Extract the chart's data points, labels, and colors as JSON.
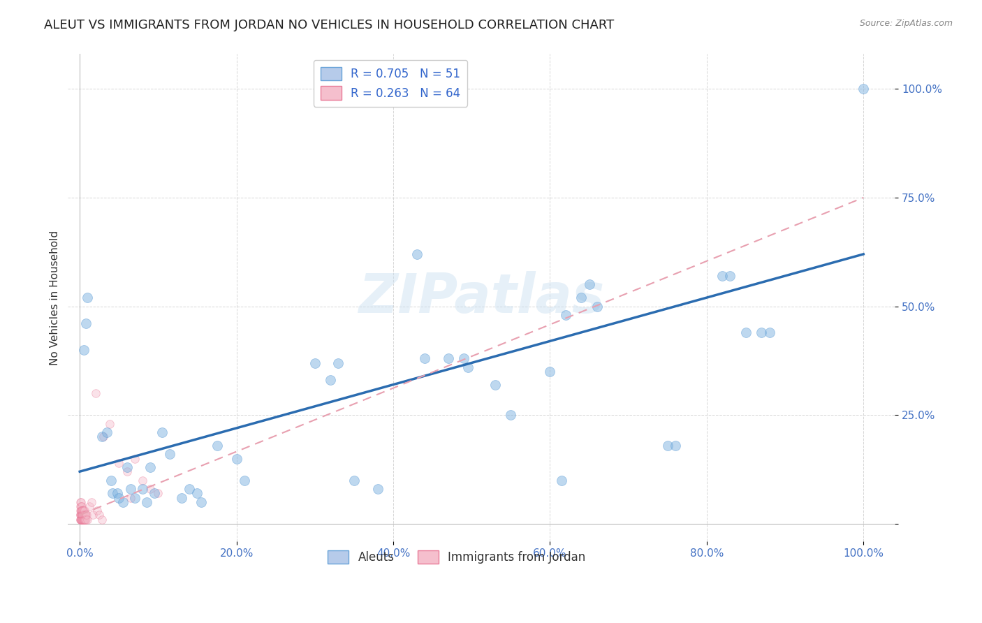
{
  "title": "ALEUT VS IMMIGRANTS FROM JORDAN NO VEHICLES IN HOUSEHOLD CORRELATION CHART",
  "source": "Source: ZipAtlas.com",
  "ylabel": "No Vehicles in Household",
  "watermark": "ZIPatlas",
  "aleuts_color": "#7fb3e0",
  "aleuts_edge": "#5b9bd5",
  "jordan_color": "#f4b8c8",
  "jordan_edge": "#e87090",
  "trendline_aleuts_color": "#2b6cb0",
  "trendline_jordan_color": "#e8a0b0",
  "aleuts_scatter": [
    [
      0.005,
      0.4
    ],
    [
      0.008,
      0.46
    ],
    [
      0.01,
      0.52
    ],
    [
      0.028,
      0.2
    ],
    [
      0.035,
      0.21
    ],
    [
      0.04,
      0.1
    ],
    [
      0.042,
      0.07
    ],
    [
      0.048,
      0.07
    ],
    [
      0.05,
      0.06
    ],
    [
      0.055,
      0.05
    ],
    [
      0.06,
      0.13
    ],
    [
      0.065,
      0.08
    ],
    [
      0.07,
      0.06
    ],
    [
      0.08,
      0.08
    ],
    [
      0.085,
      0.05
    ],
    [
      0.09,
      0.13
    ],
    [
      0.095,
      0.07
    ],
    [
      0.105,
      0.21
    ],
    [
      0.115,
      0.16
    ],
    [
      0.13,
      0.06
    ],
    [
      0.14,
      0.08
    ],
    [
      0.15,
      0.07
    ],
    [
      0.155,
      0.05
    ],
    [
      0.175,
      0.18
    ],
    [
      0.2,
      0.15
    ],
    [
      0.21,
      0.1
    ],
    [
      0.3,
      0.37
    ],
    [
      0.32,
      0.33
    ],
    [
      0.33,
      0.37
    ],
    [
      0.35,
      0.1
    ],
    [
      0.38,
      0.08
    ],
    [
      0.43,
      0.62
    ],
    [
      0.44,
      0.38
    ],
    [
      0.47,
      0.38
    ],
    [
      0.49,
      0.38
    ],
    [
      0.495,
      0.36
    ],
    [
      0.53,
      0.32
    ],
    [
      0.55,
      0.25
    ],
    [
      0.6,
      0.35
    ],
    [
      0.615,
      0.1
    ],
    [
      0.62,
      0.48
    ],
    [
      0.64,
      0.52
    ],
    [
      0.65,
      0.55
    ],
    [
      0.66,
      0.5
    ],
    [
      0.75,
      0.18
    ],
    [
      0.76,
      0.18
    ],
    [
      0.82,
      0.57
    ],
    [
      0.83,
      0.57
    ],
    [
      0.85,
      0.44
    ],
    [
      0.87,
      0.44
    ],
    [
      0.88,
      0.44
    ],
    [
      1.0,
      1.0
    ]
  ],
  "jordan_scatter": [
    [
      0.0005,
      0.01
    ],
    [
      0.0006,
      0.02
    ],
    [
      0.0007,
      0.03
    ],
    [
      0.0008,
      0.01
    ],
    [
      0.0009,
      0.04
    ],
    [
      0.001,
      0.02
    ],
    [
      0.0011,
      0.05
    ],
    [
      0.0012,
      0.01
    ],
    [
      0.0013,
      0.03
    ],
    [
      0.0014,
      0.02
    ],
    [
      0.0015,
      0.04
    ],
    [
      0.0016,
      0.01
    ],
    [
      0.0017,
      0.02
    ],
    [
      0.0018,
      0.05
    ],
    [
      0.0019,
      0.01
    ],
    [
      0.002,
      0.03
    ],
    [
      0.0021,
      0.02
    ],
    [
      0.0022,
      0.04
    ],
    [
      0.0023,
      0.01
    ],
    [
      0.0024,
      0.03
    ],
    [
      0.0025,
      0.02
    ],
    [
      0.0026,
      0.01
    ],
    [
      0.0027,
      0.03
    ],
    [
      0.0028,
      0.02
    ],
    [
      0.003,
      0.01
    ],
    [
      0.0032,
      0.02
    ],
    [
      0.0034,
      0.03
    ],
    [
      0.0036,
      0.01
    ],
    [
      0.0038,
      0.02
    ],
    [
      0.004,
      0.01
    ],
    [
      0.0042,
      0.03
    ],
    [
      0.0044,
      0.01
    ],
    [
      0.0046,
      0.02
    ],
    [
      0.0048,
      0.03
    ],
    [
      0.005,
      0.01
    ],
    [
      0.0052,
      0.02
    ],
    [
      0.0055,
      0.01
    ],
    [
      0.0058,
      0.02
    ],
    [
      0.006,
      0.01
    ],
    [
      0.0062,
      0.03
    ],
    [
      0.0065,
      0.01
    ],
    [
      0.0068,
      0.02
    ],
    [
      0.007,
      0.01
    ],
    [
      0.0075,
      0.02
    ],
    [
      0.008,
      0.01
    ],
    [
      0.009,
      0.02
    ],
    [
      0.01,
      0.01
    ],
    [
      0.02,
      0.3
    ],
    [
      0.03,
      0.2
    ],
    [
      0.038,
      0.23
    ],
    [
      0.05,
      0.14
    ],
    [
      0.06,
      0.12
    ],
    [
      0.065,
      0.06
    ],
    [
      0.07,
      0.15
    ],
    [
      0.08,
      0.1
    ],
    [
      0.09,
      0.08
    ],
    [
      0.1,
      0.07
    ],
    [
      0.012,
      0.04
    ],
    [
      0.015,
      0.05
    ],
    [
      0.017,
      0.02
    ],
    [
      0.022,
      0.03
    ],
    [
      0.025,
      0.02
    ],
    [
      0.028,
      0.01
    ]
  ],
  "xlim": [
    -0.015,
    1.04
  ],
  "ylim": [
    -0.04,
    1.08
  ],
  "grid_color": "#cccccc",
  "background_color": "#ffffff",
  "title_fontsize": 13,
  "axis_label_fontsize": 11,
  "tick_fontsize": 11,
  "scatter_size_aleuts": 100,
  "scatter_size_jordan": 70,
  "scatter_alpha_aleuts": 0.5,
  "scatter_alpha_jordan": 0.4,
  "trendline_aleuts_start_y": 0.12,
  "trendline_aleuts_end_y": 0.62,
  "trendline_jordan_start_y": 0.02,
  "trendline_jordan_end_y": 0.75
}
